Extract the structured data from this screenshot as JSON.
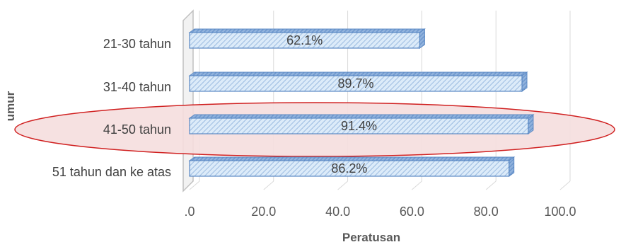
{
  "chart_data": {
    "type": "bar",
    "orientation": "horizontal",
    "categories": [
      "21-30 tahun",
      "31-40 tahun",
      "41-50 tahun",
      "51 tahun dan ke atas"
    ],
    "values": [
      62.1,
      89.7,
      91.4,
      86.2
    ],
    "data_labels": [
      "62.1%",
      "89.7%",
      "91.4%",
      "86.2%"
    ],
    "xlabel": "Peratusan",
    "ylabel": "umur",
    "xlim": [
      0,
      100
    ],
    "x_ticks": [
      0,
      20,
      40,
      60,
      80,
      100
    ],
    "x_tick_labels": [
      ".0",
      "20.0",
      "40.0",
      "60.0",
      "80.0",
      "100.0"
    ],
    "grid": true,
    "highlighted_category": "41-50 tahun",
    "colors": {
      "bar_fill": "#dcebf9",
      "bar_hatch": "#7fa7d6",
      "bar_edge": "#5b89c4",
      "highlight_fill": "#f5dede",
      "highlight_edge": "#d02020",
      "grid": "#d9d9d9"
    }
  }
}
